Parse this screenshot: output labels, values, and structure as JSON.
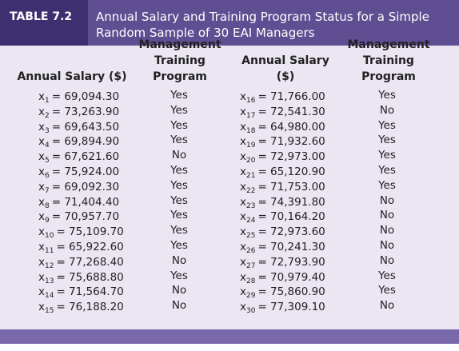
{
  "header": {
    "label": "TABLE 7.2",
    "title": "Annual Salary and Training Program Status for a Simple Random Sample of 30 EAI Managers"
  },
  "table": {
    "column_headers": [
      "Annual Salary ($)",
      "Management Training Program",
      "Annual Salary ($)",
      "Management Training Program"
    ],
    "rows": [
      [
        "x",
        "1",
        "= 69,094.30",
        "Yes",
        "x",
        "16",
        "= 71,766.00",
        "Yes"
      ],
      [
        "x",
        "2",
        "= 73,263.90",
        "Yes",
        "x",
        "17",
        "= 72,541.30",
        "No"
      ],
      [
        "x",
        "3",
        "= 69,643.50",
        "Yes",
        "x",
        "18",
        "= 64,980.00",
        "Yes"
      ],
      [
        "x",
        "4",
        "= 69,894.90",
        "Yes",
        "x",
        "19",
        "= 71,932.60",
        "Yes"
      ],
      [
        "x",
        "5",
        "= 67,621.60",
        "No",
        "x",
        "20",
        "= 72,973.00",
        "Yes"
      ],
      [
        "x",
        "6",
        "= 75,924.00",
        "Yes",
        "x",
        "21",
        "= 65,120.90",
        "Yes"
      ],
      [
        "x",
        "7",
        "= 69,092.30",
        "Yes",
        "x",
        "22",
        "= 71,753.00",
        "Yes"
      ],
      [
        "x",
        "8",
        "= 71,404.40",
        "Yes",
        "x",
        "23",
        "= 74,391.80",
        "No"
      ],
      [
        "x",
        "9",
        "= 70,957.70",
        "Yes",
        "x",
        "24",
        "= 70,164.20",
        "No"
      ],
      [
        "x",
        "10",
        "= 75,109.70",
        "Yes",
        "x",
        "25",
        "= 72,973.60",
        "No"
      ],
      [
        "x",
        "11",
        "= 65,922.60",
        "Yes",
        "x",
        "26",
        "= 70,241.30",
        "No"
      ],
      [
        "x",
        "12",
        "= 77,268.40",
        "No",
        "x",
        "27",
        "= 72,793.90",
        "No"
      ],
      [
        "x",
        "13",
        "= 75,688.80",
        "Yes",
        "x",
        "28",
        "= 70,979.40",
        "Yes"
      ],
      [
        "x",
        "14",
        "= 71,564.70",
        "No",
        "x",
        "29",
        "= 75,860.90",
        "Yes"
      ],
      [
        "x",
        "15",
        "= 76,188.20",
        "No",
        "x",
        "30",
        "= 77,309.10",
        "No"
      ]
    ]
  }
}
